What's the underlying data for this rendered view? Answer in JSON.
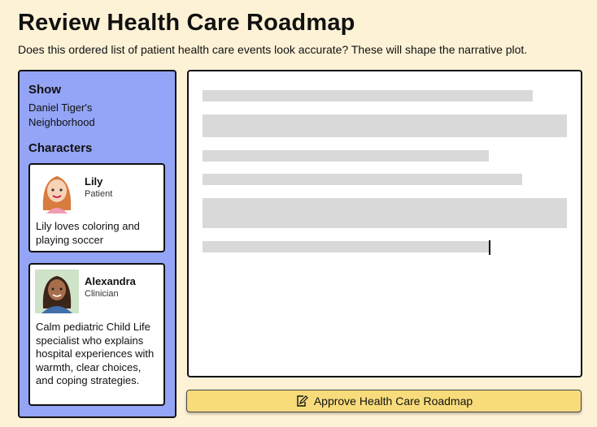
{
  "header": {
    "title": "Review Health Care Roadmap",
    "subtitle": "Does this ordered list of patient health care events look accurate? These will shape the narrative plot."
  },
  "sidebar": {
    "show_label": "Show",
    "show": "Daniel Tiger's Neighborhood",
    "characters_label": "Characters",
    "characters": [
      {
        "name": "Lily",
        "role": "Patient",
        "description": "Lily loves coloring and playing soccer"
      },
      {
        "name": "Alexandra",
        "role": "Clinician",
        "description": "Calm pediatric Child Life specialist who explains hospital experiences with warmth, clear choices, and coping strategies."
      }
    ]
  },
  "button": {
    "label": "Approve Health Care Roadmap"
  }
}
